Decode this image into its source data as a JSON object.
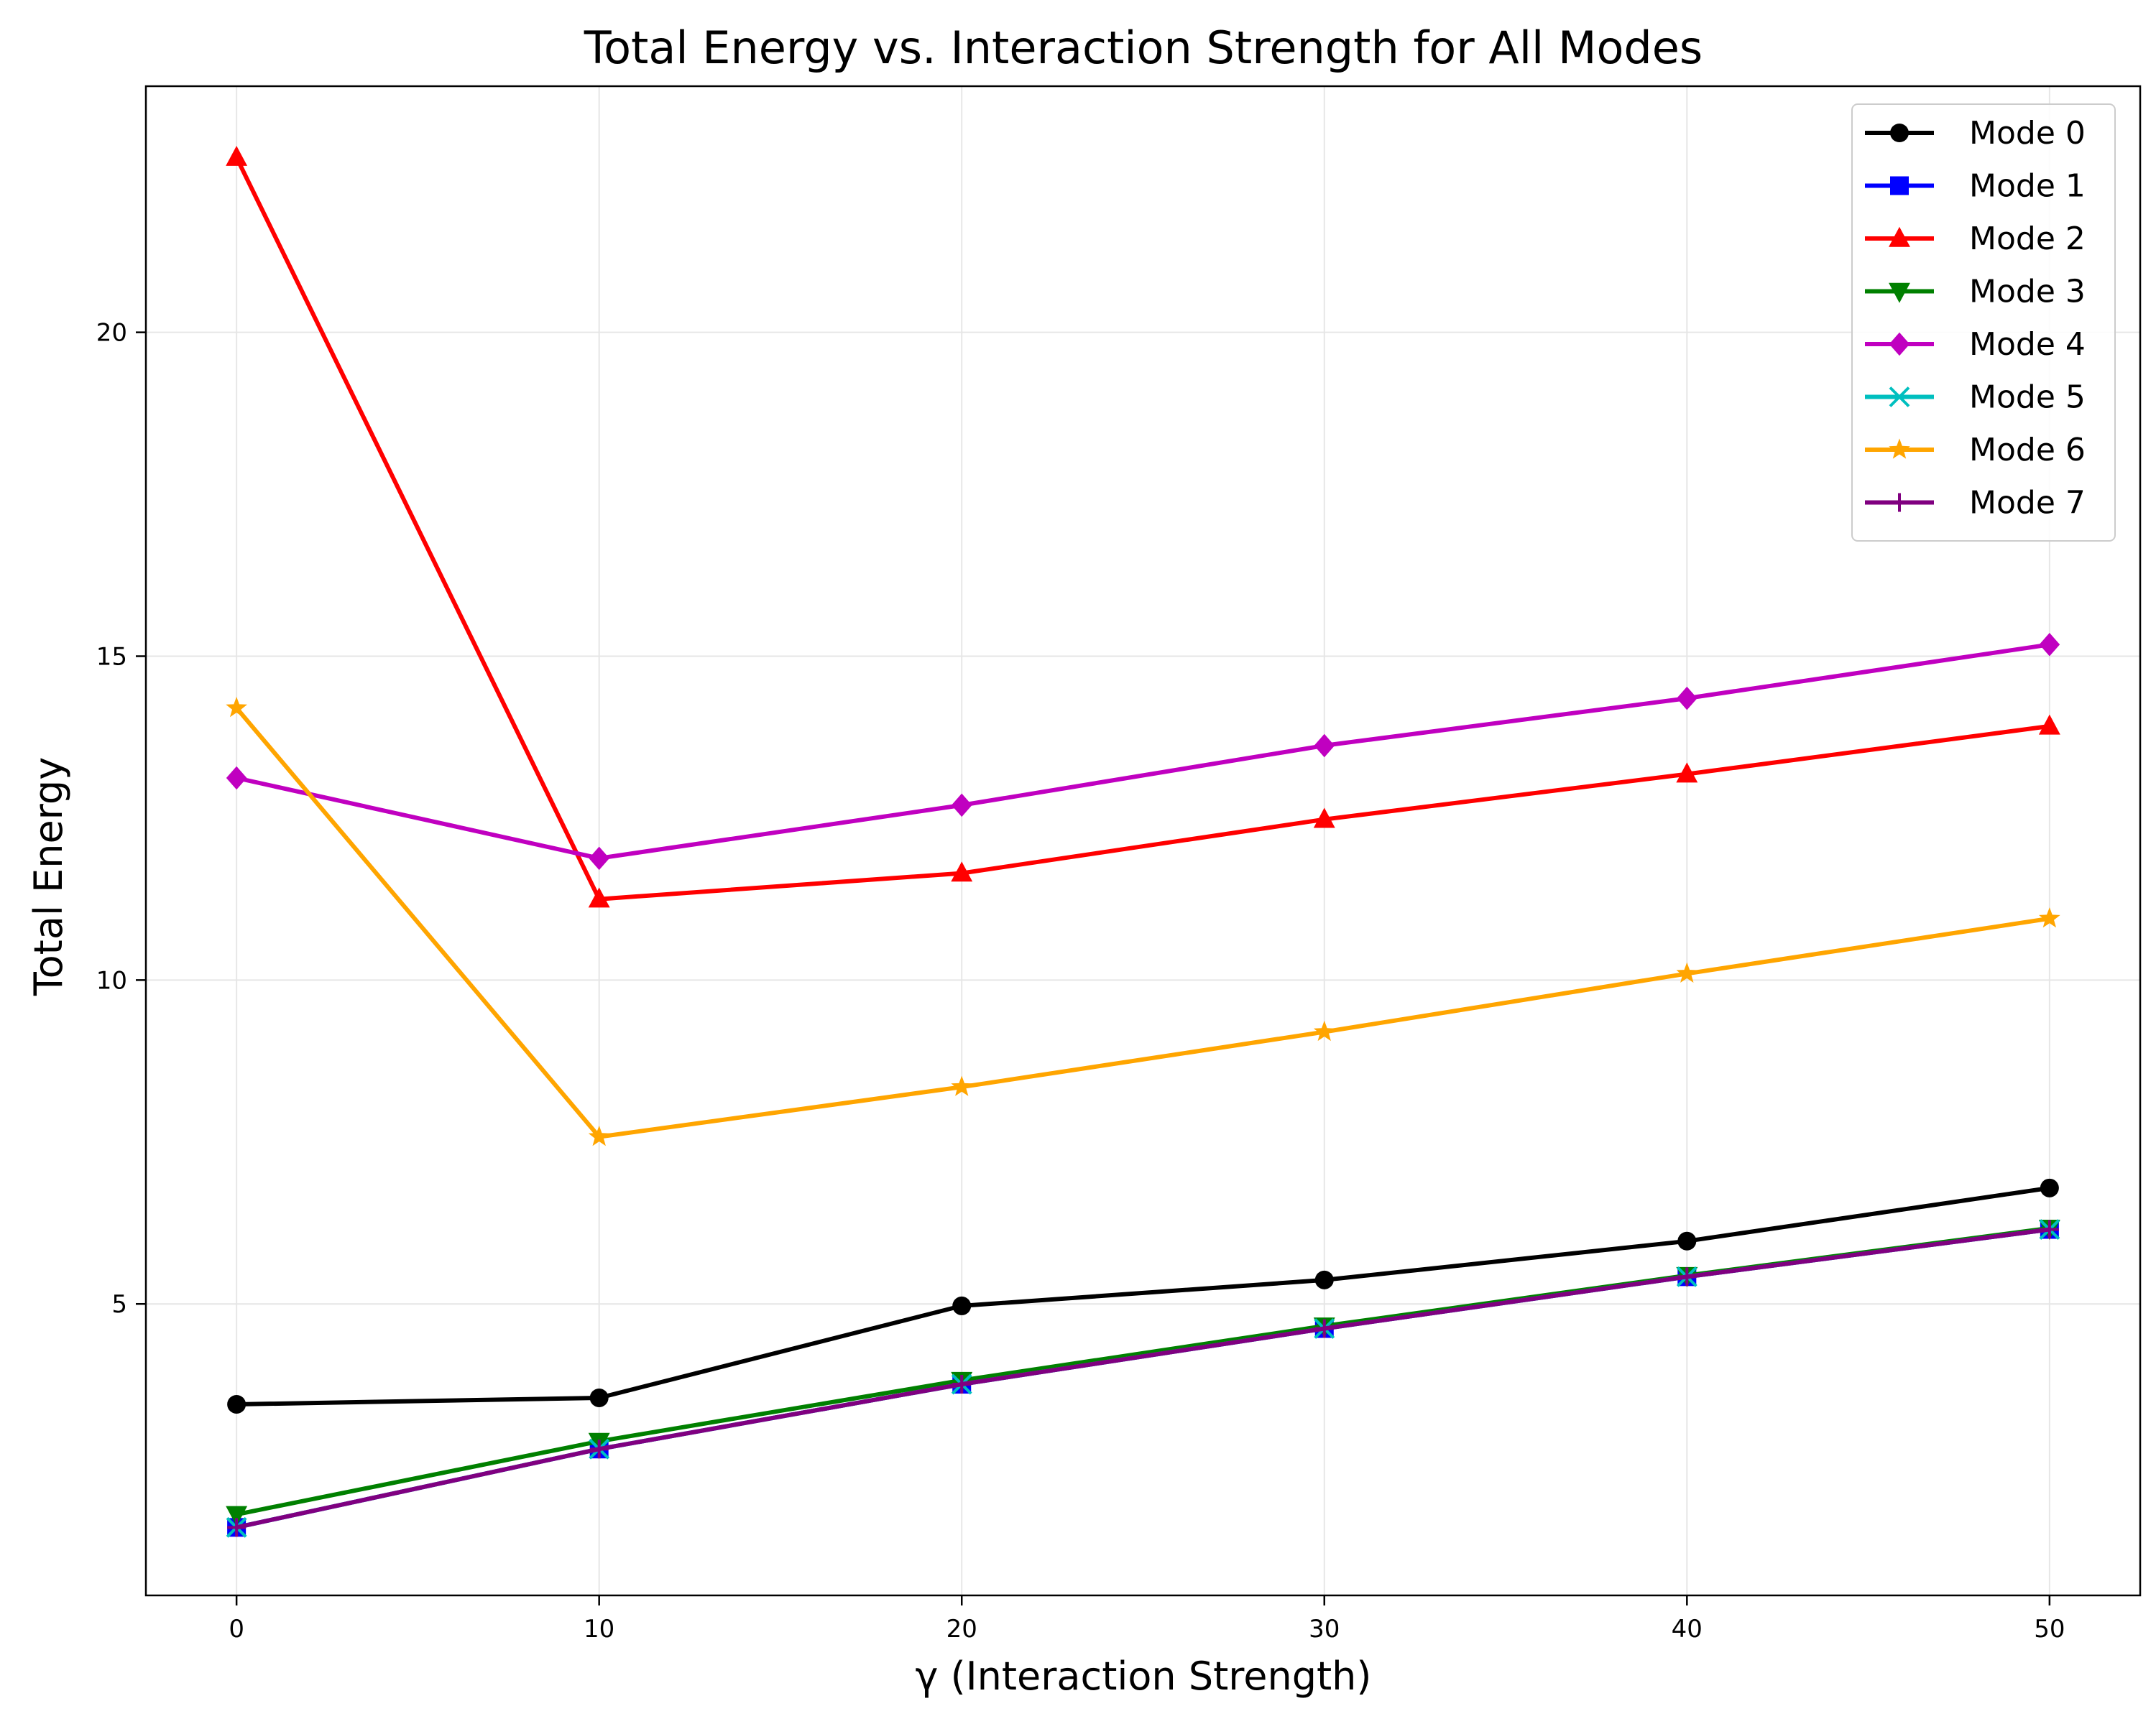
{
  "chart_data": {
    "type": "line",
    "title": "Total Energy vs. Interaction Strength for All Modes",
    "xlabel": "γ (Interaction Strength)",
    "ylabel": "Total Energy",
    "x": [
      0,
      10,
      20,
      30,
      40,
      50
    ],
    "xlim": [
      -2.5,
      52.5
    ],
    "ylim": [
      0.5,
      23.8
    ],
    "xticks": [
      0,
      10,
      20,
      30,
      40,
      50
    ],
    "yticks": [
      5,
      10,
      15,
      20
    ],
    "grid": true,
    "legend_position": "top-right",
    "series": [
      {
        "name": "Mode 0",
        "color": "#000000",
        "marker": "circle",
        "values": [
          3.45,
          3.55,
          4.97,
          5.37,
          5.97,
          6.79
        ]
      },
      {
        "name": "Mode 1",
        "color": "#0000ff",
        "marker": "square",
        "values": [
          1.55,
          2.76,
          3.76,
          4.62,
          5.42,
          6.15
        ]
      },
      {
        "name": "Mode 2",
        "color": "#ff0000",
        "marker": "triangle-up",
        "values": [
          22.7,
          11.25,
          11.65,
          12.48,
          13.18,
          13.92
        ]
      },
      {
        "name": "Mode 3",
        "color": "#008000",
        "marker": "triangle-down",
        "values": [
          1.75,
          2.88,
          3.82,
          4.66,
          5.44,
          6.17
        ]
      },
      {
        "name": "Mode 4",
        "color": "#c000c0",
        "marker": "diamond",
        "values": [
          13.12,
          11.88,
          12.7,
          13.62,
          14.35,
          15.18
        ]
      },
      {
        "name": "Mode 5",
        "color": "#00bfbf",
        "marker": "x",
        "values": [
          1.55,
          2.76,
          3.76,
          4.62,
          5.42,
          6.15
        ]
      },
      {
        "name": "Mode 6",
        "color": "#ffa500",
        "marker": "star",
        "values": [
          14.2,
          7.58,
          8.35,
          9.2,
          10.1,
          10.95
        ]
      },
      {
        "name": "Mode 7",
        "color": "#800080",
        "marker": "plus",
        "values": [
          1.55,
          2.76,
          3.76,
          4.62,
          5.42,
          6.15
        ]
      }
    ]
  }
}
